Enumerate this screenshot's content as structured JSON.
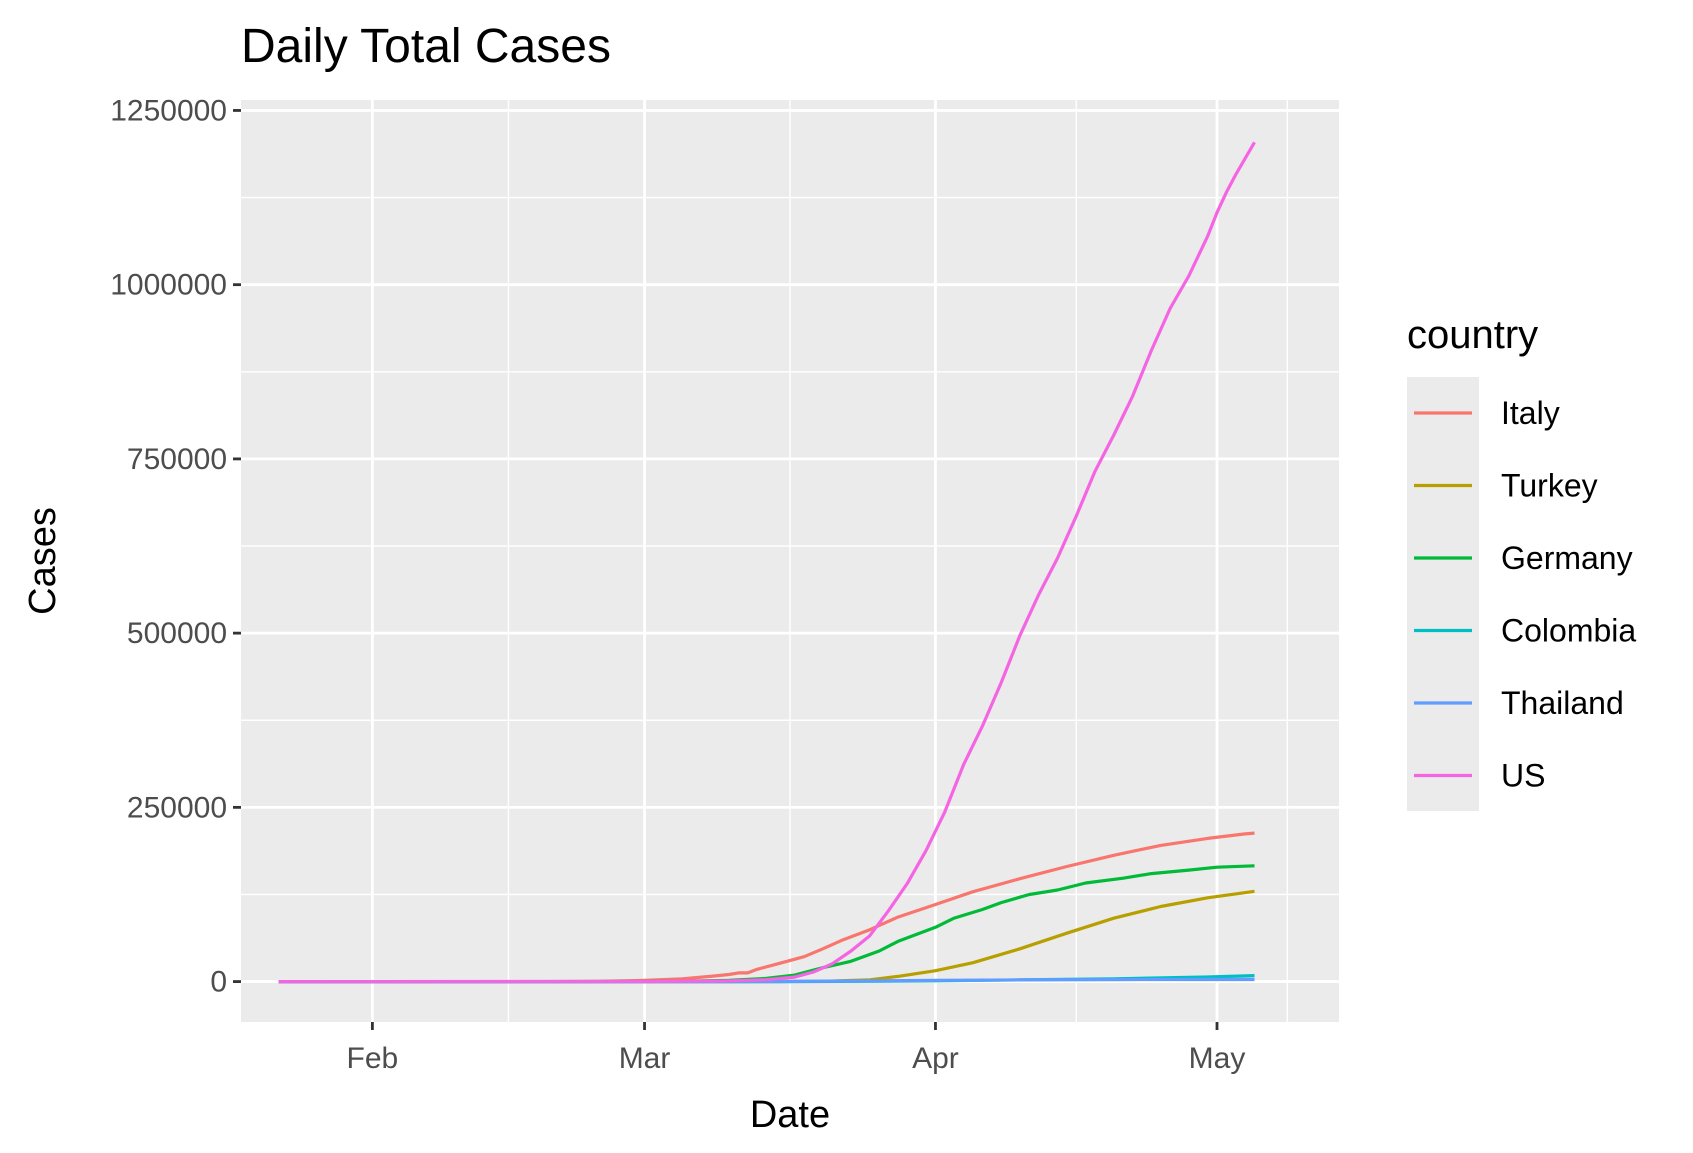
{
  "chart_data": {
    "type": "line",
    "title": "Daily Total Cases",
    "xlabel": "Date",
    "ylabel": "Cases",
    "x_type": "date",
    "xlim": [
      "2020-01-18",
      "2020-05-14"
    ],
    "x_ticks": [
      {
        "date": "2020-02-01",
        "label": "Feb"
      },
      {
        "date": "2020-03-01",
        "label": "Mar"
      },
      {
        "date": "2020-04-01",
        "label": "Apr"
      },
      {
        "date": "2020-05-01",
        "label": "May"
      }
    ],
    "ylim": [
      -58000,
      1265000
    ],
    "y_ticks": [
      {
        "value": 0,
        "label": "0"
      },
      {
        "value": 250000,
        "label": "250000"
      },
      {
        "value": 500000,
        "label": "500000"
      },
      {
        "value": 750000,
        "label": "750000"
      },
      {
        "value": 1000000,
        "label": "1000000"
      },
      {
        "value": 1250000,
        "label": "1250000"
      }
    ],
    "grid": true,
    "background": "#EBEBEB",
    "legend": {
      "title": "country",
      "position": "right"
    },
    "series": [
      {
        "name": "Italy",
        "color": "#F8766D",
        "points": [
          [
            "2020-01-22",
            0
          ],
          [
            "2020-02-20",
            3
          ],
          [
            "2020-02-25",
            322
          ],
          [
            "2020-03-01",
            1694
          ],
          [
            "2020-03-05",
            3858
          ],
          [
            "2020-03-08",
            7375
          ],
          [
            "2020-03-10",
            10149
          ],
          [
            "2020-03-11",
            12462
          ],
          [
            "2020-03-12",
            12462
          ],
          [
            "2020-03-13",
            17660
          ],
          [
            "2020-03-15",
            24747
          ],
          [
            "2020-03-18",
            35713
          ],
          [
            "2020-03-20",
            47021
          ],
          [
            "2020-03-22",
            59138
          ],
          [
            "2020-03-25",
            74386
          ],
          [
            "2020-03-28",
            92472
          ],
          [
            "2020-04-01",
            110574
          ],
          [
            "2020-04-05",
            128948
          ],
          [
            "2020-04-10",
            147577
          ],
          [
            "2020-04-15",
            165155
          ],
          [
            "2020-04-20",
            181228
          ],
          [
            "2020-04-25",
            195351
          ],
          [
            "2020-04-30",
            205463
          ],
          [
            "2020-05-04",
            211938
          ],
          [
            "2020-05-05",
            213013
          ]
        ]
      },
      {
        "name": "Turkey",
        "color": "#B79F00",
        "points": [
          [
            "2020-01-22",
            0
          ],
          [
            "2020-03-10",
            0
          ],
          [
            "2020-03-15",
            47
          ],
          [
            "2020-03-20",
            359
          ],
          [
            "2020-03-22",
            1236
          ],
          [
            "2020-03-25",
            2433
          ],
          [
            "2020-03-28",
            7402
          ],
          [
            "2020-04-01",
            15679
          ],
          [
            "2020-04-05",
            27069
          ],
          [
            "2020-04-10",
            47029
          ],
          [
            "2020-04-15",
            69392
          ],
          [
            "2020-04-20",
            90980
          ],
          [
            "2020-04-25",
            107773
          ],
          [
            "2020-04-30",
            120204
          ],
          [
            "2020-05-05",
            129491
          ]
        ]
      },
      {
        "name": "Germany",
        "color": "#00BA38",
        "points": [
          [
            "2020-01-22",
            0
          ],
          [
            "2020-01-28",
            4
          ],
          [
            "2020-03-01",
            130
          ],
          [
            "2020-03-05",
            482
          ],
          [
            "2020-03-10",
            1908
          ],
          [
            "2020-03-14",
            4585
          ],
          [
            "2020-03-17",
            9257
          ],
          [
            "2020-03-20",
            19848
          ],
          [
            "2020-03-23",
            29056
          ],
          [
            "2020-03-26",
            43938
          ],
          [
            "2020-03-28",
            57695
          ],
          [
            "2020-04-01",
            77872
          ],
          [
            "2020-04-03",
            91159
          ],
          [
            "2020-04-06",
            103374
          ],
          [
            "2020-04-08",
            113296
          ],
          [
            "2020-04-11",
            124908
          ],
          [
            "2020-04-14",
            131359
          ],
          [
            "2020-04-17",
            141397
          ],
          [
            "2020-04-21",
            148291
          ],
          [
            "2020-04-24",
            154999
          ],
          [
            "2020-04-28",
            159912
          ],
          [
            "2020-05-01",
            164077
          ],
          [
            "2020-05-05",
            166152
          ]
        ]
      },
      {
        "name": "Colombia",
        "color": "#00BFC4",
        "points": [
          [
            "2020-01-22",
            0
          ],
          [
            "2020-03-06",
            0
          ],
          [
            "2020-03-15",
            34
          ],
          [
            "2020-03-25",
            470
          ],
          [
            "2020-04-01",
            1065
          ],
          [
            "2020-04-10",
            2473
          ],
          [
            "2020-04-20",
            3977
          ],
          [
            "2020-04-30",
            6507
          ],
          [
            "2020-05-05",
            8613
          ]
        ]
      },
      {
        "name": "Thailand",
        "color": "#619CFF",
        "points": [
          [
            "2020-01-22",
            2
          ],
          [
            "2020-02-15",
            34
          ],
          [
            "2020-03-01",
            42
          ],
          [
            "2020-03-15",
            114
          ],
          [
            "2020-03-25",
            934
          ],
          [
            "2020-04-01",
            1771
          ],
          [
            "2020-04-10",
            2473
          ],
          [
            "2020-04-20",
            2792
          ],
          [
            "2020-04-30",
            2954
          ],
          [
            "2020-05-05",
            2989
          ]
        ]
      },
      {
        "name": "US",
        "color": "#F564E3",
        "points": [
          [
            "2020-01-22",
            1
          ],
          [
            "2020-03-01",
            74
          ],
          [
            "2020-03-10",
            959
          ],
          [
            "2020-03-14",
            2727
          ],
          [
            "2020-03-17",
            6421
          ],
          [
            "2020-03-19",
            13677
          ],
          [
            "2020-03-21",
            25493
          ],
          [
            "2020-03-23",
            43847
          ],
          [
            "2020-03-25",
            65778
          ],
          [
            "2020-03-27",
            101657
          ],
          [
            "2020-03-29",
            140886
          ],
          [
            "2020-03-31",
            188172
          ],
          [
            "2020-04-02",
            243453
          ],
          [
            "2020-04-04",
            311357
          ],
          [
            "2020-04-06",
            366614
          ],
          [
            "2020-04-08",
            429052
          ],
          [
            "2020-04-10",
            496535
          ],
          [
            "2020-04-12",
            555313
          ],
          [
            "2020-04-14",
            607670
          ],
          [
            "2020-04-16",
            667801
          ],
          [
            "2020-04-18",
            732197
          ],
          [
            "2020-04-20",
            784326
          ],
          [
            "2020-04-22",
            839675
          ],
          [
            "2020-04-24",
            905358
          ],
          [
            "2020-04-26",
            965785
          ],
          [
            "2020-04-28",
            1012582
          ],
          [
            "2020-04-30",
            1069424
          ],
          [
            "2020-05-01",
            1103461
          ],
          [
            "2020-05-02",
            1132539
          ],
          [
            "2020-05-03",
            1158040
          ],
          [
            "2020-05-05",
            1204351
          ]
        ]
      }
    ]
  }
}
